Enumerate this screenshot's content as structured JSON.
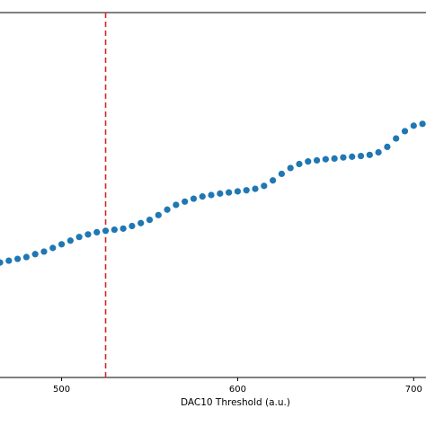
{
  "chart_data": {
    "type": "scatter",
    "title": "",
    "xlabel": "DAC10 Threshold (a.u.)",
    "ylabel": "",
    "xlim": [
      465,
      707
    ],
    "ylim": [
      0,
      1
    ],
    "x_ticks": [
      500,
      600,
      700
    ],
    "grid": false,
    "legend": "none",
    "marker_color": "#1f77b4",
    "vline": {
      "x": 525,
      "color": "#d62728",
      "style": "dashed"
    },
    "series": [
      {
        "x": [
          465,
          470,
          475,
          480,
          485,
          490,
          495,
          500,
          505,
          510,
          515,
          520,
          525,
          530,
          535,
          540,
          545,
          550,
          555,
          560,
          565,
          570,
          575,
          580,
          585,
          590,
          595,
          600,
          605,
          610,
          615,
          620,
          625,
          630,
          635,
          640,
          645,
          650,
          655,
          660,
          665,
          670,
          675,
          680,
          685,
          690,
          695,
          700,
          705
        ],
        "y": [
          0.315,
          0.32,
          0.325,
          0.33,
          0.338,
          0.345,
          0.355,
          0.365,
          0.375,
          0.385,
          0.392,
          0.398,
          0.402,
          0.405,
          0.408,
          0.415,
          0.423,
          0.432,
          0.445,
          0.46,
          0.473,
          0.482,
          0.49,
          0.496,
          0.5,
          0.504,
          0.507,
          0.51,
          0.513,
          0.517,
          0.525,
          0.54,
          0.558,
          0.574,
          0.585,
          0.592,
          0.595,
          0.598,
          0.6,
          0.603,
          0.605,
          0.607,
          0.61,
          0.617,
          0.632,
          0.655,
          0.675,
          0.69,
          0.695
        ]
      }
    ]
  }
}
